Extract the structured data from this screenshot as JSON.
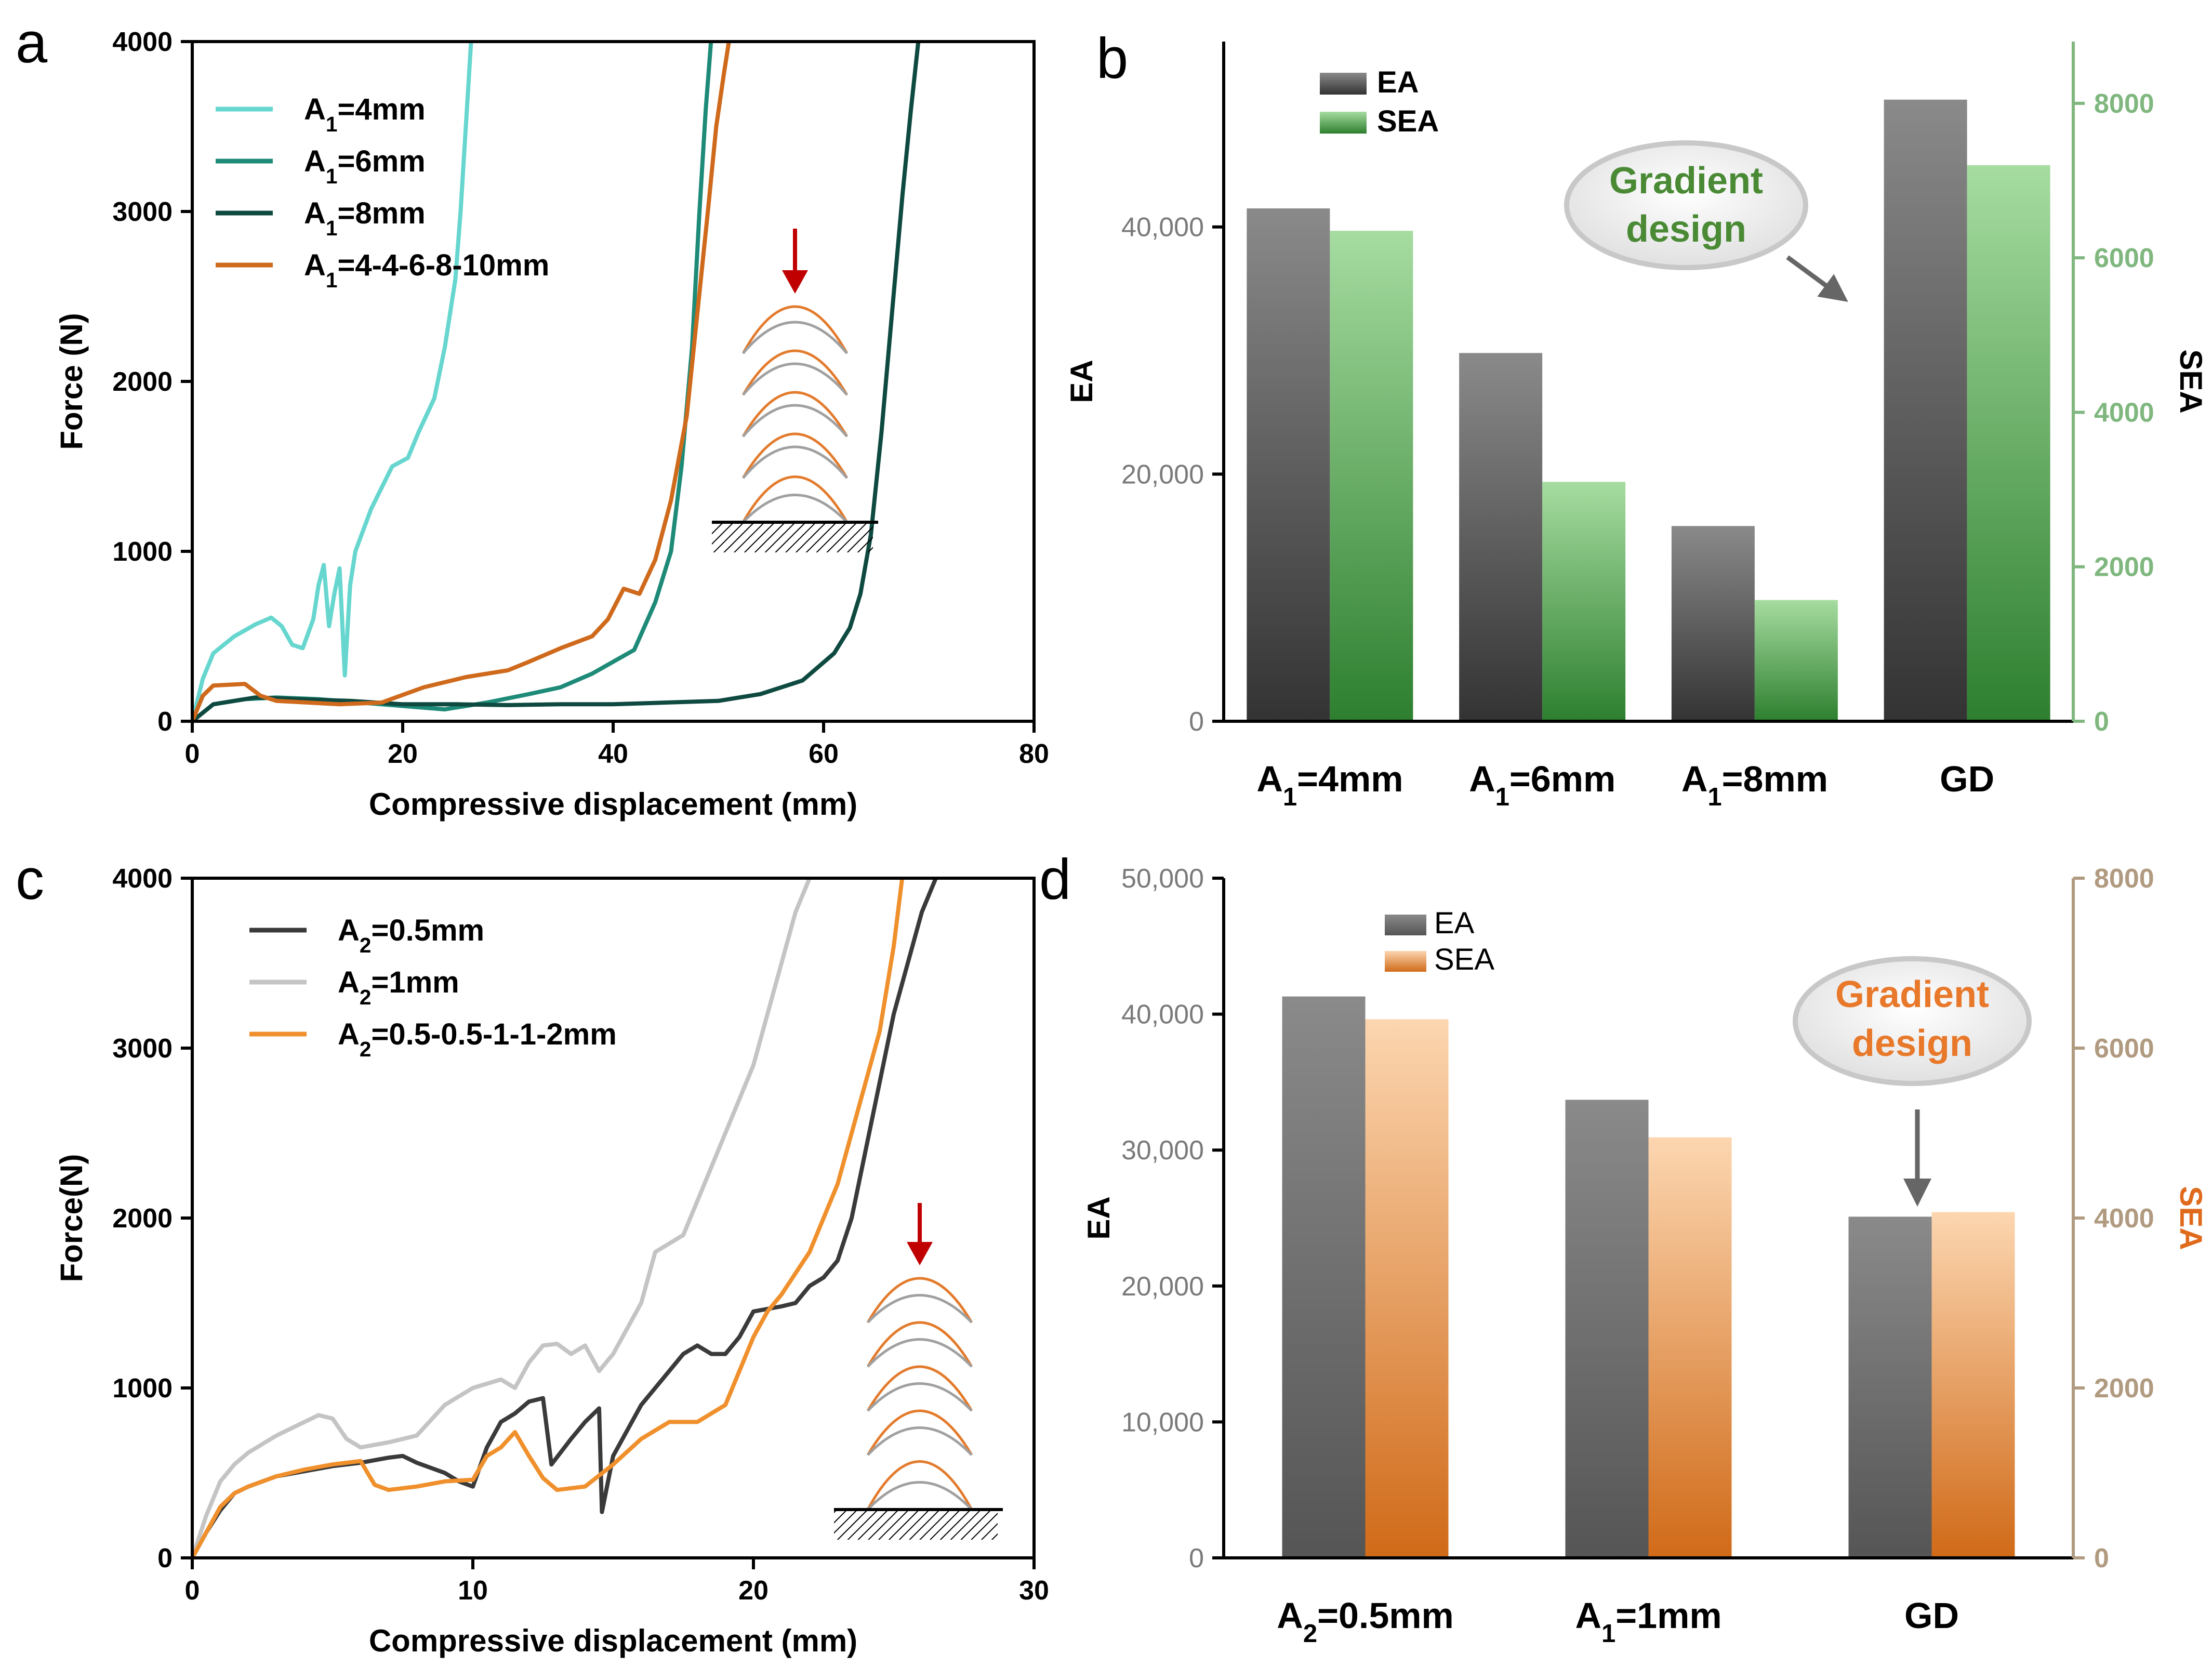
{
  "chart_data": [
    {
      "panel": "a",
      "type": "line",
      "xlabel": "Compressive displacement (mm)",
      "ylabel": "Force (N)",
      "xlim": [
        0,
        80
      ],
      "ylim": [
        0,
        4000
      ],
      "xticks": [
        "0",
        "20",
        "40",
        "60",
        "80"
      ],
      "yticks": [
        "0",
        "1000",
        "2000",
        "3000",
        "4000"
      ],
      "series": [
        {
          "name": "A1=4mm",
          "sub": "1",
          "pre": "A",
          "post": "=4mm",
          "color": "#66d6cf",
          "x": [
            0,
            1,
            2,
            4,
            6,
            7.5,
            8.5,
            9.5,
            10.5,
            11.5,
            12,
            12.5,
            13,
            13.5,
            14,
            14.5,
            15,
            15.5,
            17,
            19,
            20.5,
            21.5,
            23,
            24,
            25,
            25.5,
            26,
            26.5
          ],
          "y": [
            0,
            250,
            400,
            500,
            570,
            610,
            560,
            450,
            430,
            600,
            800,
            920,
            560,
            750,
            900,
            270,
            800,
            1000,
            1250,
            1500,
            1550,
            1700,
            1900,
            2200,
            2600,
            3000,
            3500,
            4000
          ]
        },
        {
          "name": "A1=6mm",
          "sub": "1",
          "pre": "A",
          "post": "=6mm",
          "color": "#1e8a78",
          "x": [
            0,
            2,
            5,
            8,
            12,
            16,
            20,
            24,
            28,
            32,
            35,
            38,
            40,
            42,
            44,
            45.5,
            46.5,
            47.5,
            48.2,
            48.8,
            49.3
          ],
          "y": [
            0,
            100,
            130,
            140,
            130,
            110,
            90,
            70,
            110,
            160,
            200,
            280,
            350,
            420,
            700,
            1000,
            1500,
            2200,
            3000,
            3600,
            4000
          ]
        },
        {
          "name": "A1=8mm",
          "sub": "1",
          "pre": "A",
          "post": "=8mm",
          "color": "#0e4a40",
          "x": [
            0,
            2,
            6,
            10,
            15,
            20,
            25,
            30,
            35,
            40,
            45,
            50,
            54,
            58,
            61,
            62.5,
            63.5,
            64.5,
            65.5,
            66.5,
            67.5,
            68.3,
            69
          ],
          "y": [
            0,
            100,
            140,
            130,
            120,
            100,
            100,
            95,
            100,
            100,
            110,
            120,
            160,
            240,
            400,
            550,
            750,
            1100,
            1700,
            2400,
            3100,
            3600,
            4000
          ]
        },
        {
          "name": "A1=4-4-6-8-10mm",
          "sub": "1",
          "pre": "A",
          "post": "=4-4-6-8-10mm",
          "color": "#cf6a1c",
          "x": [
            0,
            1,
            2,
            5,
            6.5,
            8,
            11,
            14,
            18,
            22,
            26,
            30,
            32,
            35,
            38,
            39.5,
            41,
            42.5,
            44,
            45.5,
            47,
            48,
            49,
            49.8,
            50.5,
            51
          ],
          "y": [
            0,
            150,
            210,
            220,
            150,
            120,
            110,
            100,
            110,
            200,
            260,
            300,
            350,
            430,
            500,
            600,
            780,
            750,
            950,
            1300,
            1800,
            2400,
            3000,
            3500,
            3800,
            4000
          ]
        }
      ]
    },
    {
      "panel": "b",
      "type": "bar",
      "categories": [
        "A1=4mm",
        "A1=6mm",
        "A1=8mm",
        "GD"
      ],
      "category_parts": [
        {
          "pre": "A",
          "sub": "1",
          "post": "=4mm"
        },
        {
          "pre": "A",
          "sub": "1",
          "post": "=6mm"
        },
        {
          "pre": "A",
          "sub": "1",
          "post": "=8mm"
        },
        {
          "pre": "GD",
          "sub": "",
          "post": ""
        }
      ],
      "ylabel": "EA",
      "y2label": "SEA",
      "ylim": [
        0,
        55000
      ],
      "y2lim": [
        0,
        8800
      ],
      "yticks": [
        "0",
        "20,000",
        "40,000"
      ],
      "y2ticks": [
        "0",
        "2000",
        "4000",
        "6000",
        "8000"
      ],
      "series": [
        {
          "name": "EA",
          "axis": "left",
          "values": [
            41500,
            29800,
            15800,
            50300
          ],
          "color_top": "#8a8a8a",
          "color_bottom": "#333333"
        },
        {
          "name": "SEA",
          "axis": "right",
          "values": [
            6350,
            3100,
            1570,
            7200
          ],
          "color_top": "#a6dca0",
          "color_bottom": "#2d7f2f"
        }
      ],
      "annotation": {
        "line1": "Gradient",
        "line2": "design",
        "color": "#4a8a35"
      },
      "right_axis_color": "#7fb77f"
    },
    {
      "panel": "c",
      "type": "line",
      "xlabel": "Compressive displacement (mm)",
      "ylabel": "Force(N)",
      "xlim": [
        0,
        30
      ],
      "ylim": [
        0,
        4000
      ],
      "xticks": [
        "0",
        "10",
        "20",
        "30"
      ],
      "yticks": [
        "0",
        "1000",
        "2000",
        "3000",
        "4000"
      ],
      "series": [
        {
          "name": "A2=0.5mm",
          "sub": "2",
          "pre": "A",
          "post": "=0.5mm",
          "color": "#3a3a3a",
          "x": [
            0,
            0.5,
            1,
            1.5,
            2,
            3,
            4,
            5,
            6,
            7,
            7.5,
            8,
            9,
            9.5,
            10,
            10.5,
            11,
            11.5,
            12,
            12.5,
            12.8,
            13.5,
            14,
            14.5,
            14.6,
            15,
            16,
            17,
            17.5,
            18,
            18.5,
            19,
            19.5,
            20,
            21,
            21.5,
            22,
            22.5,
            23,
            23.5,
            24,
            24.5,
            25,
            25.5,
            26,
            26.5
          ],
          "y": [
            0,
            150,
            280,
            380,
            420,
            480,
            510,
            540,
            560,
            590,
            600,
            560,
            500,
            450,
            420,
            650,
            800,
            850,
            920,
            940,
            550,
            700,
            800,
            880,
            270,
            600,
            900,
            1100,
            1200,
            1250,
            1200,
            1200,
            1300,
            1450,
            1480,
            1500,
            1600,
            1650,
            1750,
            2000,
            2400,
            2800,
            3200,
            3500,
            3800,
            4000
          ]
        },
        {
          "name": "A2=1mm",
          "sub": "2",
          "pre": "A",
          "post": "=1mm",
          "color": "#c4c4c4",
          "x": [
            0,
            0.5,
            1,
            1.5,
            2,
            3,
            4,
            4.5,
            5,
            5.5,
            6,
            7,
            8,
            9,
            10,
            11,
            11.5,
            12,
            12.5,
            13,
            13.5,
            14,
            14.5,
            15,
            16,
            16.5,
            17,
            17.5,
            18,
            19,
            20,
            20.5,
            21,
            21.5,
            22
          ],
          "y": [
            0,
            250,
            450,
            550,
            620,
            720,
            800,
            840,
            820,
            700,
            650,
            680,
            720,
            900,
            1000,
            1050,
            1000,
            1150,
            1250,
            1260,
            1200,
            1250,
            1100,
            1200,
            1500,
            1800,
            1850,
            1900,
            2100,
            2500,
            2900,
            3200,
            3500,
            3800,
            4000
          ]
        },
        {
          "name": "A2=0.5-0.5-1-1-2mm",
          "sub": "2",
          "pre": "A",
          "post": "=0.5-0.5-1-1-2mm",
          "color": "#f0902c",
          "x": [
            0,
            0.5,
            1,
            1.5,
            2,
            3,
            4,
            5,
            6,
            6.5,
            7,
            8,
            9,
            10,
            10.5,
            11,
            11.5,
            12,
            12.5,
            13,
            14,
            15,
            16,
            17,
            18,
            19,
            19.5,
            20,
            20.5,
            21,
            22,
            22.5,
            23,
            23.5,
            24,
            24.5,
            25,
            25.3
          ],
          "y": [
            0,
            150,
            300,
            380,
            420,
            480,
            520,
            550,
            570,
            430,
            400,
            420,
            450,
            460,
            600,
            650,
            740,
            600,
            470,
            400,
            420,
            550,
            700,
            800,
            800,
            900,
            1100,
            1300,
            1450,
            1550,
            1800,
            2000,
            2200,
            2500,
            2800,
            3100,
            3600,
            4000
          ]
        }
      ]
    },
    {
      "panel": "d",
      "type": "bar",
      "categories": [
        "A2=0.5mm",
        "A1=1mm",
        "GD"
      ],
      "category_parts": [
        {
          "pre": "A",
          "sub": "2",
          "post": "=0.5mm"
        },
        {
          "pre": "A",
          "sub": "1",
          "post": "=1mm"
        },
        {
          "pre": "GD",
          "sub": "",
          "post": ""
        }
      ],
      "ylabel": "EA",
      "y2label": "SEA",
      "ylim": [
        0,
        50000
      ],
      "y2lim": [
        0,
        8000
      ],
      "yticks": [
        "0",
        "10,000",
        "20,000",
        "30,000",
        "40,000",
        "50,000"
      ],
      "y2ticks": [
        "0",
        "2000",
        "4000",
        "6000",
        "8000"
      ],
      "series": [
        {
          "name": "EA",
          "axis": "left",
          "values": [
            41300,
            33700,
            25100
          ],
          "color_top": "#8a8a8a",
          "color_bottom": "#555555"
        },
        {
          "name": "SEA",
          "axis": "right",
          "values": [
            6340,
            4950,
            4070
          ],
          "color_top": "#fcd6b0",
          "color_bottom": "#d06a18"
        }
      ],
      "annotation": {
        "line1": "Gradient",
        "line2": "design",
        "color": "#e8782a"
      },
      "right_axis_color": "#b09a80"
    }
  ]
}
